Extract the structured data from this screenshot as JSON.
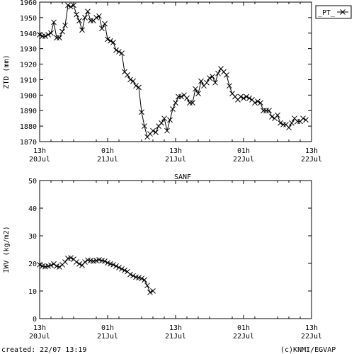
{
  "footer": {
    "created": "created: 22/07 13:19",
    "credit": "(c)KNMI/EGVAP"
  },
  "chart_data": [
    {
      "type": "line",
      "title": "",
      "xlabel": "",
      "ylabel": "ZTD (mm)",
      "legend_label": "_PT_",
      "legend_placement": "top-right outside",
      "ylim": [
        1870,
        1960
      ],
      "yticks": [
        "1870",
        "1880",
        "1890",
        "1900",
        "1910",
        "1920",
        "1930",
        "1940",
        "1950",
        "1960"
      ],
      "xlim_hours": [
        0,
        72
      ],
      "xticks": [
        {
          "top": "13h",
          "bottom": "20Jul"
        },
        {
          "top": "01h",
          "bottom": "21Jul"
        },
        {
          "top": "13h",
          "bottom": "21Jul"
        },
        {
          "top": "01h",
          "bottom": "22Jul"
        },
        {
          "top": "13h",
          "bottom": "22Jul"
        }
      ],
      "x_hours": [
        0,
        0.75,
        1.5,
        2.25,
        3,
        3.75,
        4.5,
        5.25,
        6,
        6.75,
        7.5,
        8.25,
        9,
        9.75,
        10.5,
        11.25,
        12,
        12.75,
        13.5,
        14.25,
        15,
        15.75,
        16.5,
        17.25,
        18,
        18.75,
        19.5,
        20.25,
        21,
        21.75,
        22.5,
        23.25,
        24,
        24.75,
        25.5,
        26.25,
        27,
        27.75,
        28.5,
        29.25,
        30,
        30.75,
        31.5,
        32.25,
        33,
        33.75,
        34.5,
        35.25,
        36,
        36.75,
        37.5,
        38.25,
        39,
        39.75,
        40.5,
        41.25,
        42,
        42.75,
        43.5,
        44.25,
        45,
        45.75,
        46.5,
        47.25,
        48,
        48.75,
        49.5,
        50.25,
        51,
        51.75,
        52.5,
        53.25,
        54,
        54.75,
        55.5,
        56.25,
        57,
        57.75,
        58.5,
        59.25,
        60,
        60.75,
        61.5,
        62.25,
        63,
        63.75,
        64.5,
        65.25,
        66,
        66.75,
        67.5,
        68.25,
        69,
        69.75,
        70.5
      ],
      "values": [
        1939,
        1938,
        1938,
        1939,
        1940,
        1947,
        1937,
        1937,
        1941,
        1945,
        1958,
        1957,
        1958,
        1952,
        1948,
        1942,
        1950,
        1954,
        1948,
        1948,
        1950,
        1951,
        1943,
        1946,
        1936,
        1935,
        1934,
        1929,
        1928,
        1927,
        1915,
        1913,
        1910,
        1909,
        1906,
        1905,
        1889,
        1880,
        1873,
        1875,
        1877,
        1876,
        1880,
        1882,
        1885,
        1877,
        1884,
        1891,
        1895,
        1899,
        1899,
        1900,
        1898,
        1895,
        1895,
        1904,
        1901,
        1909,
        1906,
        1908,
        1911,
        1912,
        1908,
        1914,
        1917,
        1915,
        1913,
        1906,
        1901,
        1899,
        1897,
        1899,
        1898,
        1899,
        1898,
        1897,
        1895,
        1896,
        1895,
        1890,
        1890,
        1890,
        1886,
        1885,
        1887,
        1882,
        1881,
        1881,
        1879,
        1882,
        1885,
        1883,
        1883,
        1885,
        1884
      ]
    },
    {
      "type": "line",
      "title": "SANF",
      "xlabel": "",
      "ylabel": "IWV (kg/m2)",
      "ylim": [
        0,
        50
      ],
      "yticks": [
        "0",
        "10",
        "20",
        "30",
        "40",
        "50"
      ],
      "xlim_hours": [
        0,
        72
      ],
      "xticks": [
        {
          "top": "13h",
          "bottom": "20Jul"
        },
        {
          "top": "01h",
          "bottom": "21Jul"
        },
        {
          "top": "13h",
          "bottom": "21Jul"
        },
        {
          "top": "01h",
          "bottom": "22Jul"
        },
        {
          "top": "13h",
          "bottom": "22Jul"
        }
      ],
      "x_hours": [
        0,
        0.75,
        1.5,
        2.25,
        3,
        3.75,
        4.5,
        5.25,
        6,
        6.75,
        7.5,
        8.25,
        9,
        9.75,
        10.5,
        11.25,
        12,
        12.75,
        13.5,
        14.25,
        15,
        15.75,
        16.5,
        17.25,
        18,
        18.75,
        19.5,
        20.25,
        21,
        21.75,
        22.5,
        23.25,
        24,
        24.75,
        25.5,
        26.25,
        27,
        27.75,
        28.5,
        29.25,
        30
      ],
      "values": [
        19.5,
        19,
        18.8,
        19,
        19.3,
        19.8,
        19,
        18.7,
        19.5,
        20.5,
        21.8,
        22,
        21.5,
        20.5,
        19.8,
        19.3,
        20.5,
        21.2,
        21,
        20.8,
        21,
        21.3,
        21,
        20.8,
        20.2,
        19.8,
        19.5,
        19,
        18.5,
        18,
        17.5,
        17,
        16,
        15.5,
        15,
        14.8,
        14.5,
        14,
        12,
        9.5,
        10
      ]
    }
  ]
}
